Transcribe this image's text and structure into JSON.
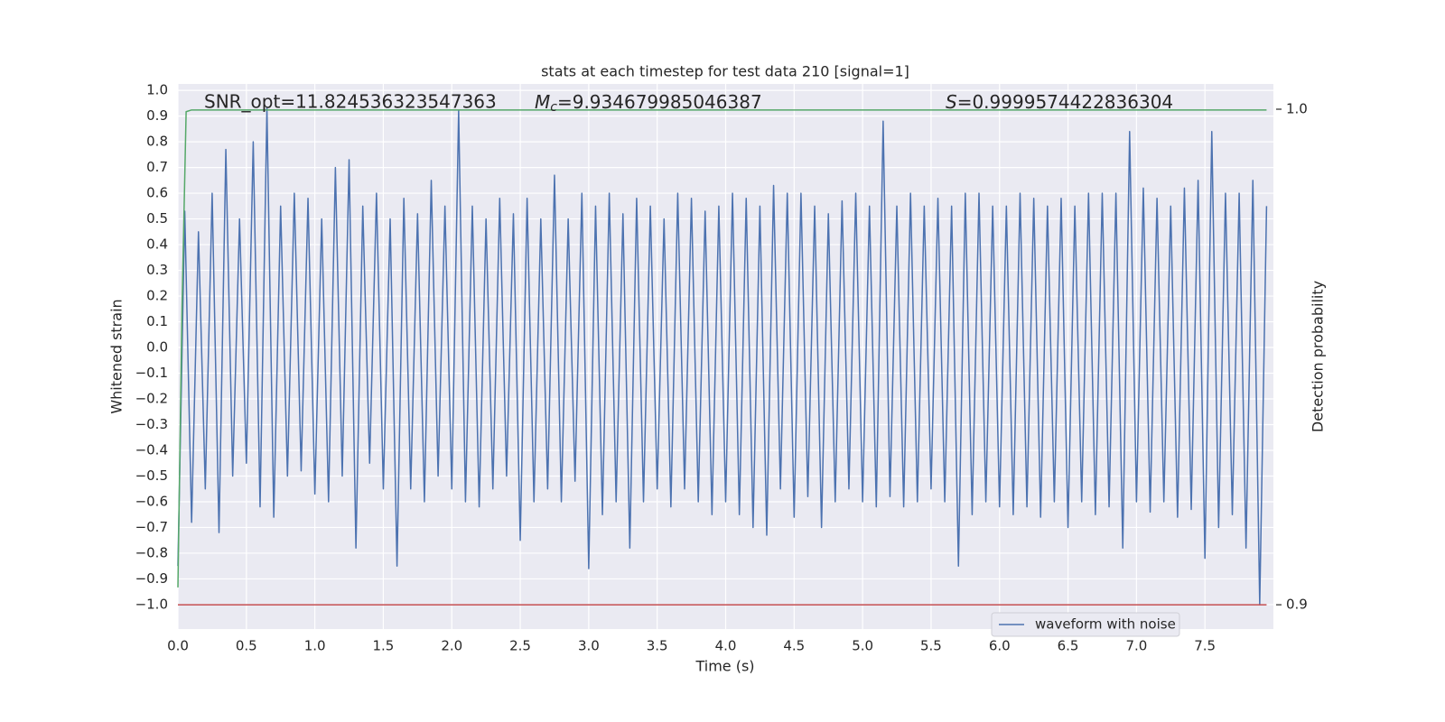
{
  "chart_data": {
    "type": "line",
    "title": "stats at each timestep for test data 210 [signal=1]",
    "xlabel": "Time (s)",
    "ylabel": "Whitened strain",
    "y2label": "Detection probability",
    "annotations": [
      {
        "text": "SNR_opt=11.824536323547363"
      },
      {
        "symbol": "M",
        "subscript": "c",
        "text": "=9.934679985046387"
      },
      {
        "symbol": "S",
        "text": "=0.9999574422836304"
      }
    ],
    "xlim": [
      0,
      8.0
    ],
    "ylim": [
      -1.095,
      1.025
    ],
    "y2lim": [
      0.8951,
      1.0051
    ],
    "xticks": [
      {
        "value": 0,
        "label": "0.0"
      },
      0.5,
      {
        "value": 1,
        "label": "1.0"
      },
      1.5,
      {
        "value": 2,
        "label": "2.0"
      },
      2.5,
      {
        "value": 3,
        "label": "3.0"
      },
      3.5,
      {
        "value": 4,
        "label": "4.0"
      },
      4.5,
      {
        "value": 5,
        "label": "5.0"
      },
      5.5,
      {
        "value": 6,
        "label": "6.0"
      },
      6.5,
      {
        "value": 7,
        "label": "7.0"
      },
      7.5
    ],
    "yticks": [
      {
        "value": -1,
        "label": "−1.0"
      },
      {
        "value": -0.9,
        "label": "−0.9"
      },
      {
        "value": -0.8,
        "label": "−0.8"
      },
      {
        "value": -0.7,
        "label": "−0.7"
      },
      {
        "value": -0.6,
        "label": "−0.6"
      },
      {
        "value": -0.5,
        "label": "−0.5"
      },
      {
        "value": -0.4,
        "label": "−0.4"
      },
      {
        "value": -0.3,
        "label": "−0.3"
      },
      {
        "value": -0.2,
        "label": "−0.2"
      },
      {
        "value": -0.1,
        "label": "−0.1"
      },
      {
        "value": 0,
        "label": "0.0"
      },
      0.1,
      0.2,
      0.3,
      0.4,
      0.5,
      0.6,
      0.7,
      0.8,
      0.9,
      {
        "value": 1,
        "label": "1.0"
      }
    ],
    "y2ticks": [
      0.9,
      {
        "value": 1,
        "label": "1.0"
      }
    ],
    "grid": true,
    "legend": "lower right",
    "series": [
      {
        "name": "waveform with noise",
        "color": "#4c72b0",
        "x": [
          0,
          0.05,
          0.1,
          0.15,
          0.2,
          0.25,
          0.3,
          0.35,
          0.4,
          0.45,
          0.5,
          0.55,
          0.6,
          0.65,
          0.7,
          0.75,
          0.8,
          0.85,
          0.9,
          0.95,
          1,
          1.05,
          1.1,
          1.15,
          1.2,
          1.25,
          1.3,
          1.35,
          1.4,
          1.45,
          1.5,
          1.55,
          1.6,
          1.65,
          1.7,
          1.75,
          1.8,
          1.85,
          1.9,
          1.95,
          2,
          2.05,
          2.1,
          2.15,
          2.2,
          2.25,
          2.3,
          2.35,
          2.4,
          2.45,
          2.5,
          2.55,
          2.6,
          2.65,
          2.7,
          2.75,
          2.8,
          2.85,
          2.9,
          2.95,
          3,
          3.05,
          3.1,
          3.15,
          3.2,
          3.25,
          3.3,
          3.35,
          3.4,
          3.45,
          3.5,
          3.55,
          3.6,
          3.65,
          3.7,
          3.75,
          3.8,
          3.85,
          3.9,
          3.95,
          4,
          4.05,
          4.1,
          4.15,
          4.2,
          4.25,
          4.3,
          4.35,
          4.4,
          4.45,
          4.5,
          4.55,
          4.6,
          4.65,
          4.7,
          4.75,
          4.8,
          4.85,
          4.9,
          4.95,
          5,
          5.05,
          5.1,
          5.15,
          5.2,
          5.25,
          5.3,
          5.35,
          5.4,
          5.45,
          5.5,
          5.55,
          5.6,
          5.65,
          5.7,
          5.75,
          5.8,
          5.85,
          5.9,
          5.95,
          6,
          6.05,
          6.1,
          6.15,
          6.2,
          6.25,
          6.3,
          6.35,
          6.4,
          6.45,
          6.5,
          6.55,
          6.6,
          6.65,
          6.7,
          6.75,
          6.8,
          6.85,
          6.9,
          6.95,
          7,
          7.05,
          7.1,
          7.15,
          7.2,
          7.25,
          7.3,
          7.35,
          7.4,
          7.45,
          7.5,
          7.55,
          7.6,
          7.65,
          7.7,
          7.75,
          7.8,
          7.85,
          7.9,
          7.95
        ],
        "values": [
          -0.85,
          0.53,
          -0.68,
          0.45,
          -0.55,
          0.6,
          -0.72,
          0.77,
          -0.5,
          0.5,
          -0.45,
          0.8,
          -0.62,
          0.93,
          -0.66,
          0.55,
          -0.5,
          0.6,
          -0.48,
          0.58,
          -0.57,
          0.5,
          -0.6,
          0.7,
          -0.5,
          0.73,
          -0.78,
          0.55,
          -0.45,
          0.6,
          -0.55,
          0.5,
          -0.85,
          0.58,
          -0.55,
          0.52,
          -0.6,
          0.65,
          -0.5,
          0.55,
          -0.55,
          0.92,
          -0.6,
          0.55,
          -0.62,
          0.5,
          -0.55,
          0.58,
          -0.5,
          0.52,
          -0.75,
          0.58,
          -0.6,
          0.5,
          -0.55,
          0.67,
          -0.6,
          0.5,
          -0.52,
          0.6,
          -0.86,
          0.55,
          -0.65,
          0.6,
          -0.6,
          0.52,
          -0.78,
          0.58,
          -0.6,
          0.55,
          -0.55,
          0.5,
          -0.62,
          0.6,
          -0.55,
          0.58,
          -0.6,
          0.53,
          -0.65,
          0.55,
          -0.6,
          0.6,
          -0.65,
          0.58,
          -0.7,
          0.55,
          -0.73,
          0.63,
          -0.55,
          0.6,
          -0.66,
          0.6,
          -0.58,
          0.55,
          -0.7,
          0.52,
          -0.6,
          0.57,
          -0.55,
          0.6,
          -0.6,
          0.55,
          -0.62,
          0.88,
          -0.58,
          0.55,
          -0.62,
          0.6,
          -0.6,
          0.55,
          -0.55,
          0.58,
          -0.6,
          0.55,
          -0.85,
          0.6,
          -0.65,
          0.6,
          -0.6,
          0.55,
          -0.62,
          0.55,
          -0.65,
          0.6,
          -0.62,
          0.58,
          -0.66,
          0.55,
          -0.6,
          0.58,
          -0.7,
          0.55,
          -0.6,
          0.6,
          -0.65,
          0.6,
          -0.62,
          0.6,
          -0.78,
          0.84,
          -0.6,
          0.62,
          -0.64,
          0.58,
          -0.6,
          0.55,
          -0.66,
          0.62,
          -0.63,
          0.65,
          -0.82,
          0.84,
          -0.7,
          0.6,
          -0.65,
          0.6,
          -0.78,
          0.65,
          -1.0,
          0.55
        ]
      },
      {
        "color": "#55a868",
        "axis": "y2",
        "x": [
          0,
          0.03,
          0.06,
          0.1,
          7.95
        ],
        "values": [
          0.9035,
          0.96,
          0.9995,
          0.99985,
          0.99985
        ]
      },
      {
        "color": "#c44e52",
        "axis": "y2",
        "x": [
          0,
          7.95
        ],
        "values": [
          0.9,
          0.9
        ]
      }
    ]
  }
}
